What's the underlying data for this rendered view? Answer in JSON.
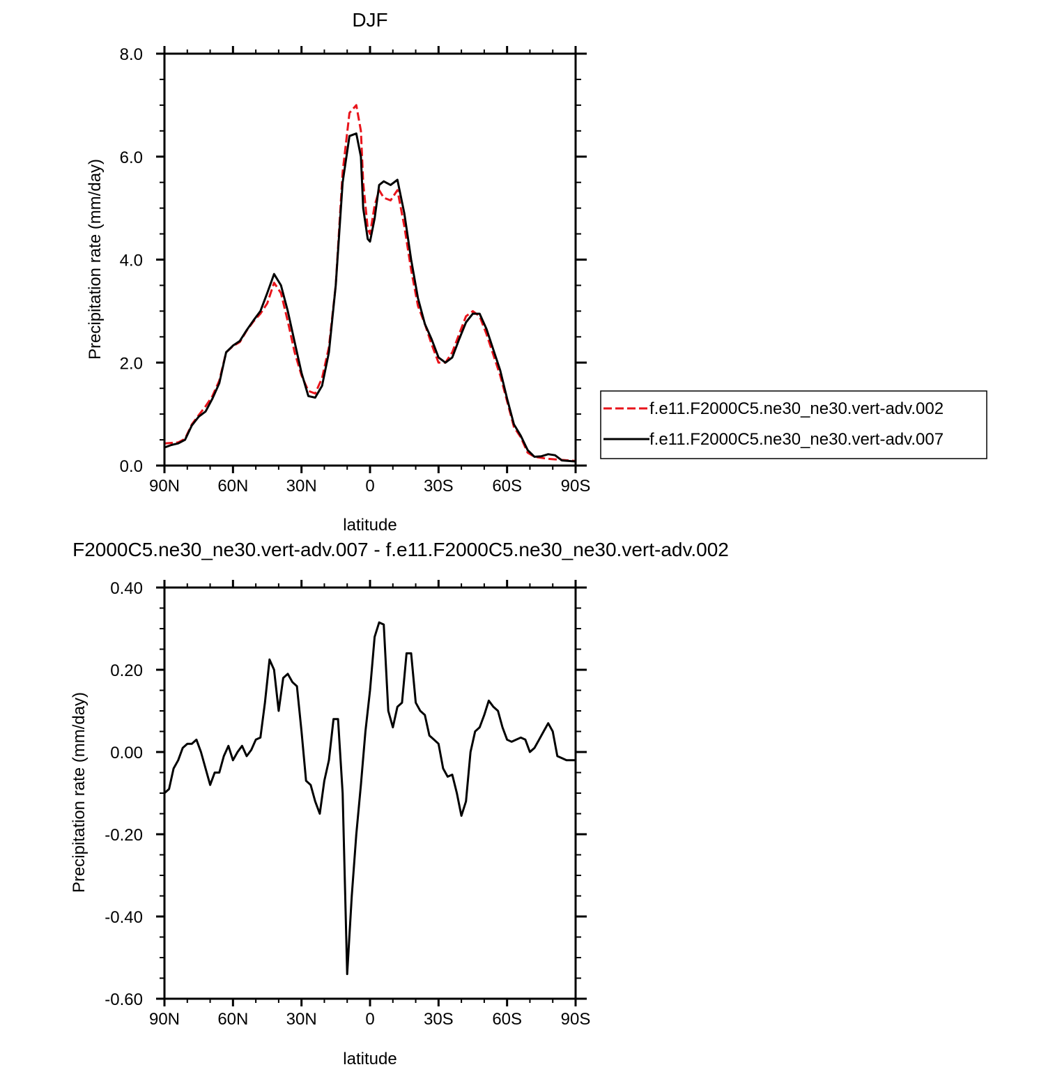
{
  "chart_data": [
    {
      "type": "line",
      "title": "DJF",
      "xlabel": "latitude",
      "ylabel": "Precipitation rate (mm/day)",
      "xlim": [
        90,
        -90
      ],
      "ylim": [
        0,
        8
      ],
      "xticks": [
        {
          "value": 90,
          "label": "90N"
        },
        {
          "value": 60,
          "label": "60N"
        },
        {
          "value": 30,
          "label": "30N"
        },
        {
          "value": 0,
          "label": "0"
        },
        {
          "value": -30,
          "label": "30S"
        },
        {
          "value": -60,
          "label": "60S"
        },
        {
          "value": -90,
          "label": "90S"
        }
      ],
      "yticks": [
        {
          "value": 0,
          "label": "0.0"
        },
        {
          "value": 2,
          "label": "2.0"
        },
        {
          "value": 4,
          "label": "4.0"
        },
        {
          "value": 6,
          "label": "6.0"
        },
        {
          "value": 8,
          "label": "8.0"
        }
      ],
      "grid": false,
      "legend_position": "right",
      "series": [
        {
          "name": "f.e11.F2000C5.ne30_ne30.vert-adv.002",
          "color": "#e8141b",
          "dash": true,
          "x": [
            90,
            87,
            84,
            81,
            78,
            75,
            72,
            69,
            66,
            63,
            60,
            57,
            54,
            51,
            48,
            45,
            42,
            39,
            36,
            33,
            30,
            27,
            24,
            21,
            18,
            15,
            12,
            9,
            6,
            4,
            3,
            1,
            0,
            -2,
            -4,
            -6,
            -9,
            -12,
            -15,
            -18,
            -21,
            -24,
            -27,
            -30,
            -33,
            -36,
            -39,
            -42,
            -45,
            -48,
            -51,
            -54,
            -57,
            -60,
            -63,
            -66,
            -69,
            -72,
            -75,
            -78,
            -81,
            -84,
            -87,
            -90
          ],
          "y": [
            0.43,
            0.44,
            0.45,
            0.52,
            0.8,
            0.98,
            1.15,
            1.35,
            1.65,
            2.2,
            2.32,
            2.4,
            2.62,
            2.8,
            2.95,
            3.15,
            3.55,
            3.35,
            2.8,
            2.2,
            1.75,
            1.45,
            1.4,
            1.7,
            2.3,
            3.5,
            5.7,
            6.85,
            7.0,
            6.5,
            5.5,
            4.6,
            4.5,
            5.05,
            5.35,
            5.2,
            5.15,
            5.35,
            4.65,
            3.8,
            3.1,
            2.75,
            2.35,
            2.0,
            2.0,
            2.2,
            2.55,
            2.9,
            3.0,
            2.9,
            2.55,
            2.15,
            1.75,
            1.25,
            0.75,
            0.55,
            0.25,
            0.17,
            0.15,
            0.13,
            0.12,
            0.11,
            0.1,
            0.09
          ]
        },
        {
          "name": "f.e11.F2000C5.ne30_ne30.vert-adv.007",
          "color": "#000000",
          "dash": false,
          "x": [
            90,
            87,
            84,
            81,
            78,
            75,
            72,
            69,
            66,
            63,
            60,
            57,
            54,
            51,
            48,
            45,
            42,
            39,
            36,
            33,
            30,
            27,
            24,
            21,
            18,
            15,
            12,
            9,
            6,
            4,
            3,
            1,
            0,
            -2,
            -4,
            -6,
            -9,
            -12,
            -15,
            -18,
            -21,
            -24,
            -27,
            -30,
            -33,
            -36,
            -39,
            -42,
            -45,
            -48,
            -51,
            -54,
            -57,
            -60,
            -63,
            -66,
            -69,
            -72,
            -75,
            -78,
            -81,
            -84,
            -87,
            -90
          ],
          "y": [
            0.35,
            0.4,
            0.43,
            0.5,
            0.78,
            0.95,
            1.05,
            1.3,
            1.6,
            2.2,
            2.33,
            2.42,
            2.63,
            2.82,
            3.0,
            3.35,
            3.72,
            3.5,
            3.0,
            2.4,
            1.8,
            1.35,
            1.32,
            1.55,
            2.2,
            3.5,
            5.5,
            6.4,
            6.45,
            6.0,
            5.0,
            4.4,
            4.35,
            4.8,
            5.45,
            5.52,
            5.45,
            5.55,
            4.9,
            4.0,
            3.25,
            2.75,
            2.45,
            2.1,
            2.0,
            2.1,
            2.45,
            2.78,
            2.95,
            2.95,
            2.65,
            2.25,
            1.85,
            1.3,
            0.8,
            0.58,
            0.3,
            0.17,
            0.18,
            0.22,
            0.2,
            0.1,
            0.09,
            0.08
          ]
        }
      ]
    },
    {
      "type": "line",
      "title": "F2000C5.ne30_ne30.vert-adv.007 - f.e11.F2000C5.ne30_ne30.vert-adv.002",
      "xlabel": "latitude",
      "ylabel": "Precipitation rate (mm/day)",
      "xlim": [
        90,
        -90
      ],
      "ylim": [
        -0.6,
        0.4
      ],
      "xticks": [
        {
          "value": 90,
          "label": "90N"
        },
        {
          "value": 60,
          "label": "60N"
        },
        {
          "value": 30,
          "label": "30N"
        },
        {
          "value": 0,
          "label": "0"
        },
        {
          "value": -30,
          "label": "30S"
        },
        {
          "value": -60,
          "label": "60S"
        },
        {
          "value": -90,
          "label": "90S"
        }
      ],
      "yticks": [
        {
          "value": -0.6,
          "label": "-0.60"
        },
        {
          "value": -0.4,
          "label": "-0.40"
        },
        {
          "value": -0.2,
          "label": "-0.20"
        },
        {
          "value": 0.0,
          "label": "0.00"
        },
        {
          "value": 0.2,
          "label": "0.20"
        },
        {
          "value": 0.4,
          "label": "0.40"
        }
      ],
      "grid": false,
      "series": [
        {
          "color": "#000000",
          "dash": false,
          "x": [
            90,
            88,
            86,
            84,
            82,
            80,
            78,
            76,
            74,
            72,
            70,
            68,
            66,
            64,
            62,
            60,
            58,
            56,
            54,
            52,
            50,
            48,
            46,
            44,
            42,
            40,
            38,
            36,
            34,
            32,
            30,
            28,
            26,
            24,
            22,
            20,
            18,
            16,
            14,
            12,
            10,
            8,
            6,
            4,
            2,
            0,
            -2,
            -4,
            -6,
            -8,
            -10,
            -12,
            -14,
            -16,
            -18,
            -20,
            -22,
            -24,
            -26,
            -28,
            -30,
            -32,
            -34,
            -36,
            -38,
            -40,
            -42,
            -44,
            -46,
            -48,
            -50,
            -52,
            -54,
            -56,
            -58,
            -60,
            -62,
            -64,
            -66,
            -68,
            -70,
            -72,
            -74,
            -76,
            -78,
            -80,
            -82,
            -84,
            -86,
            -88,
            -90
          ],
          "y": [
            -0.1,
            -0.09,
            -0.04,
            -0.02,
            0.01,
            0.02,
            0.02,
            0.03,
            0.0,
            -0.04,
            -0.08,
            -0.05,
            -0.05,
            -0.01,
            0.015,
            -0.02,
            0.0,
            0.015,
            -0.01,
            0.005,
            0.03,
            0.035,
            0.12,
            0.225,
            0.2,
            0.1,
            0.18,
            0.19,
            0.17,
            0.16,
            0.05,
            -0.07,
            -0.08,
            -0.12,
            -0.15,
            -0.07,
            -0.02,
            0.08,
            0.08,
            -0.1,
            -0.54,
            -0.35,
            -0.2,
            -0.08,
            0.05,
            0.15,
            0.28,
            0.315,
            0.31,
            0.1,
            0.06,
            0.11,
            0.12,
            0.24,
            0.24,
            0.12,
            0.1,
            0.09,
            0.04,
            0.03,
            0.02,
            -0.04,
            -0.06,
            -0.055,
            -0.1,
            -0.155,
            -0.12,
            0.0,
            0.05,
            0.06,
            0.09,
            0.125,
            0.11,
            0.1,
            0.06,
            0.03,
            0.025,
            0.03,
            0.035,
            0.03,
            0.0,
            0.01,
            0.03,
            0.05,
            0.07,
            0.05,
            -0.01,
            -0.015,
            -0.02,
            -0.02,
            -0.02
          ]
        }
      ]
    }
  ]
}
